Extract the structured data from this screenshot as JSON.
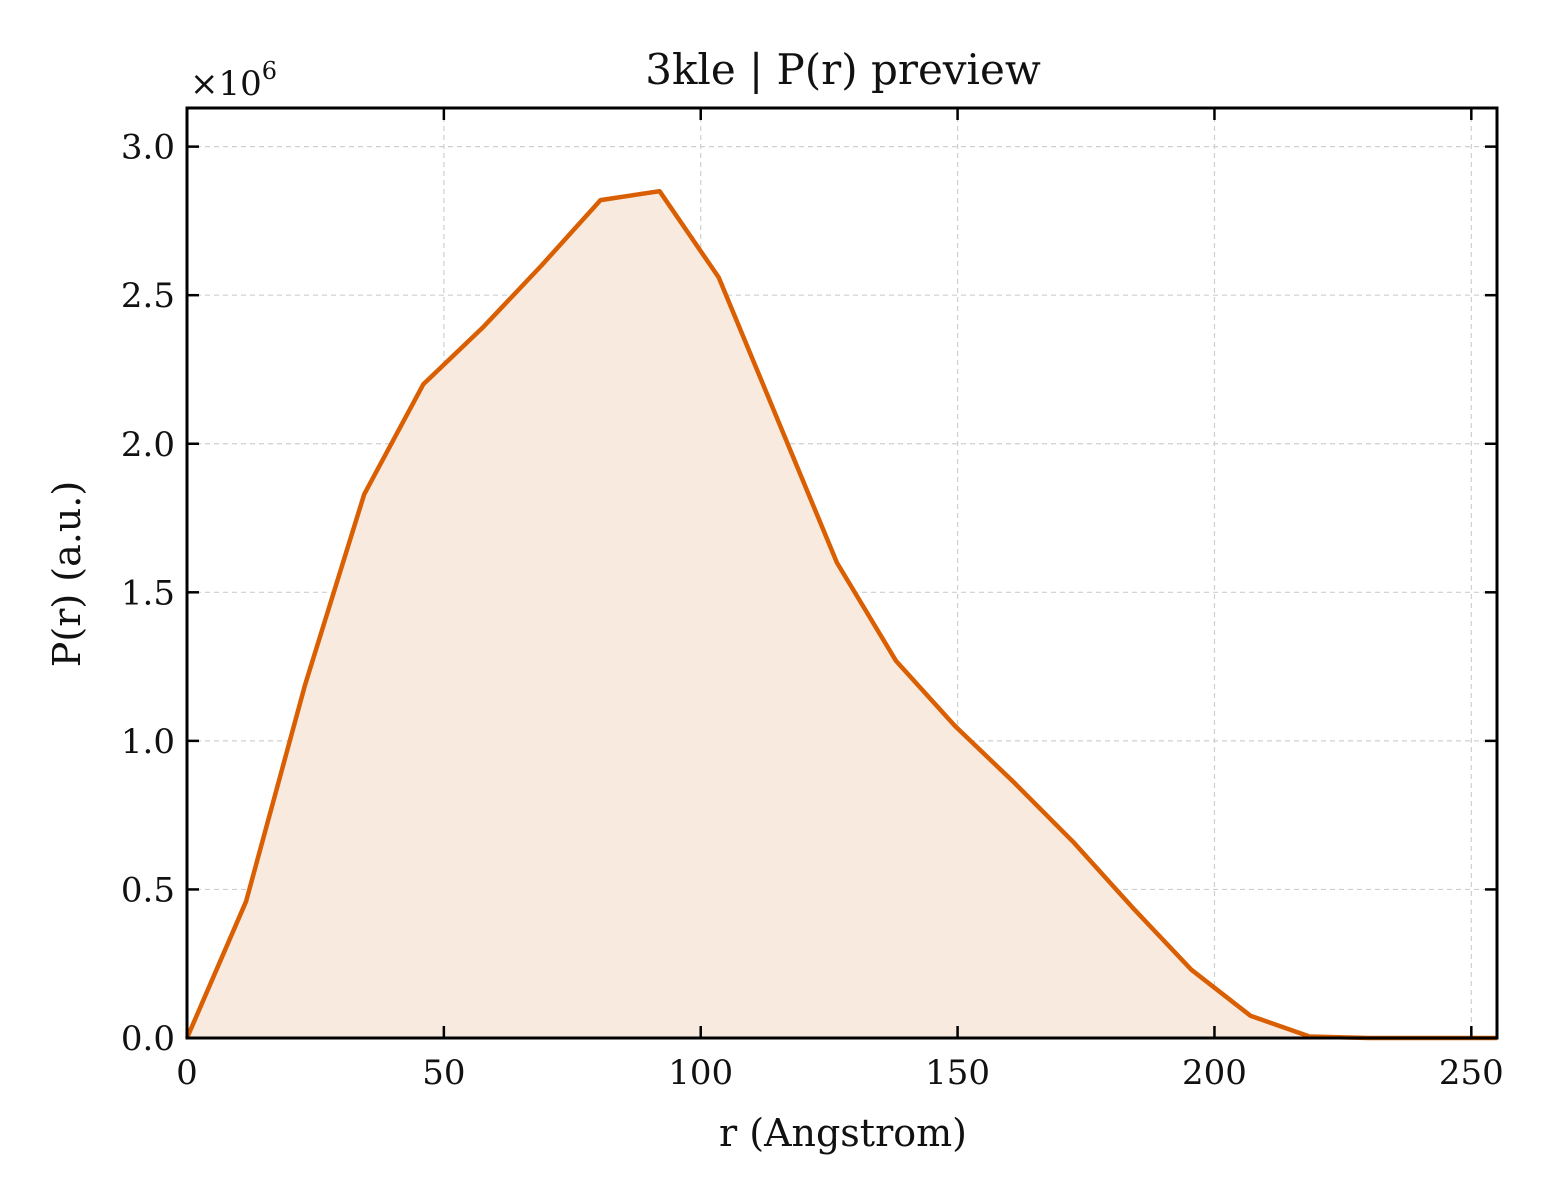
{
  "chart_data": {
    "type": "area",
    "title": "3kle | P(r) preview",
    "xlabel": "r (Angstrom)",
    "ylabel": "P(r) (a.u.)",
    "y_multiplier": "×10",
    "y_multiplier_exp": "6",
    "xlim": [
      0,
      255
    ],
    "ylim": [
      0,
      3.13
    ],
    "y_scale_factor": 1000000,
    "xticks": [
      0,
      50,
      100,
      150,
      200,
      250
    ],
    "xtick_labels": [
      "0",
      "50",
      "100",
      "150",
      "200",
      "250"
    ],
    "yticks": [
      0,
      0.5,
      1.0,
      1.5,
      2.0,
      2.5,
      3.0
    ],
    "ytick_labels": [
      "0.0",
      "0.5",
      "1.0",
      "1.5",
      "2.0",
      "2.5",
      "3.0"
    ],
    "grid": true,
    "line_color": "#d95f02",
    "fill_color": "#f9eadf",
    "series": [
      {
        "x": [
          0,
          11.5,
          23,
          34.5,
          46,
          57.5,
          69,
          80.5,
          92,
          103.5,
          115,
          126.5,
          138,
          149.5,
          161,
          172.5,
          184,
          195.5,
          207,
          218.5,
          230,
          241.5,
          255
        ],
        "y": [
          0.0,
          0.46,
          1.19,
          1.83,
          2.2,
          2.39,
          2.6,
          2.82,
          2.85,
          2.56,
          2.08,
          1.6,
          1.27,
          1.05,
          0.86,
          0.66,
          0.44,
          0.23,
          0.075,
          0.005,
          0.0,
          0.0,
          0.0
        ]
      }
    ]
  }
}
